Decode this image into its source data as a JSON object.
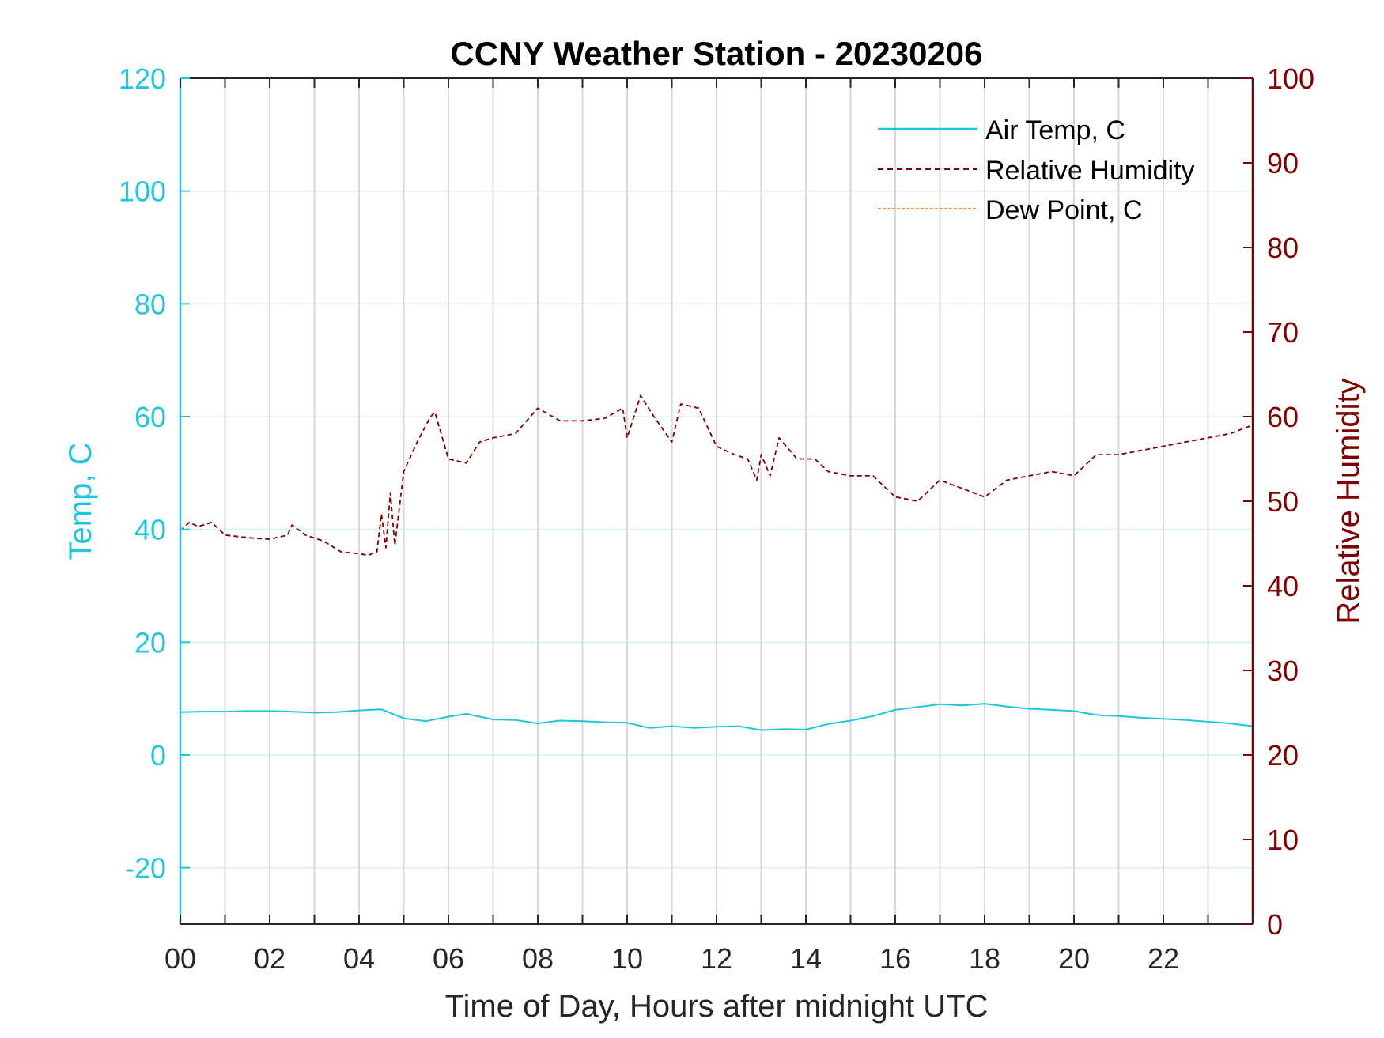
{
  "chart_data": {
    "type": "line",
    "title": "CCNY Weather Station - 20230206",
    "xlabel": "Time of Day, Hours after midnight UTC",
    "ylabel_left": "Temp, C",
    "ylabel_right": "Relative Humidity",
    "xlim": [
      0,
      24
    ],
    "ylim_left": [
      -30,
      120
    ],
    "ylim_right": [
      0,
      100
    ],
    "x_ticks": [
      "00",
      "02",
      "04",
      "06",
      "08",
      "10",
      "12",
      "14",
      "16",
      "18",
      "20",
      "22"
    ],
    "y_ticks_left": [
      "-20",
      "0",
      "20",
      "40",
      "60",
      "80",
      "100",
      "120"
    ],
    "y_ticks_right": [
      "0",
      "10",
      "20",
      "30",
      "40",
      "50",
      "60",
      "70",
      "80",
      "90",
      "100"
    ],
    "grid": true,
    "legend_position": "top-right",
    "colors": {
      "temp": "#1fc6dc",
      "rh": "#800000",
      "dew": "#e8721c",
      "grid_vertical": "#d8d8d8",
      "grid_horizontal": "#cdeff5"
    },
    "series": [
      {
        "name": "Air Temp, C",
        "axis": "left",
        "style": "solid",
        "x": [
          0,
          0.5,
          1,
          1.5,
          2,
          2.5,
          3,
          3.5,
          4,
          4.5,
          5,
          5.5,
          6,
          6.4,
          7,
          7.5,
          8,
          8.5,
          9,
          9.5,
          10,
          10.5,
          11,
          11.5,
          12,
          12.5,
          13,
          13.5,
          14,
          14.5,
          15,
          15.5,
          16,
          16.5,
          17,
          17.5,
          18,
          18.5,
          19,
          19.5,
          20,
          20.5,
          21,
          21.5,
          22,
          22.5,
          23,
          23.5,
          24
        ],
        "values": [
          7.6,
          7.7,
          7.7,
          7.8,
          7.8,
          7.7,
          7.5,
          7.6,
          7.9,
          8.1,
          6.5,
          6.0,
          6.8,
          7.3,
          6.3,
          6.2,
          5.6,
          6.1,
          6.0,
          5.8,
          5.7,
          4.8,
          5.1,
          4.8,
          5.0,
          5.1,
          4.4,
          4.6,
          4.5,
          5.5,
          6.1,
          6.9,
          8.0,
          8.5,
          9.0,
          8.8,
          9.1,
          8.6,
          8.2,
          8.0,
          7.8,
          7.1,
          6.9,
          6.6,
          6.4,
          6.2,
          5.9,
          5.6,
          5.1
        ]
      },
      {
        "name": "Relative Humidity",
        "axis": "right",
        "style": "dashed",
        "x": [
          0,
          0.2,
          0.4,
          0.7,
          1,
          1.5,
          2,
          2.4,
          2.5,
          2.8,
          3.2,
          3.6,
          4,
          4.2,
          4.4,
          4.5,
          4.6,
          4.7,
          4.8,
          5,
          5.3,
          5.6,
          5.7,
          6,
          6.4,
          6.7,
          7,
          7.5,
          8,
          8.5,
          9,
          9.5,
          9.9,
          10,
          10.3,
          10.6,
          11,
          11.2,
          11.6,
          12,
          12.4,
          12.7,
          12.9,
          13,
          13.2,
          13.4,
          13.8,
          14.2,
          14.5,
          15,
          15.5,
          16,
          16.5,
          17,
          17.5,
          18,
          18.5,
          19,
          19.5,
          20,
          20.5,
          21,
          21.5,
          22,
          22.5,
          23,
          23.5,
          24
        ],
        "values": [
          46.5,
          47.5,
          47.0,
          47.5,
          46.0,
          45.7,
          45.5,
          46.0,
          47.2,
          46.0,
          45.3,
          44.0,
          43.8,
          43.6,
          44.0,
          48.5,
          44.5,
          51.0,
          44.8,
          53.5,
          57.0,
          60.0,
          60.5,
          55.0,
          54.5,
          57.0,
          57.5,
          58.0,
          61.0,
          59.5,
          59.5,
          59.8,
          61.0,
          57.5,
          62.5,
          60.0,
          57.0,
          61.5,
          61.0,
          56.5,
          55.5,
          55.0,
          52.5,
          55.5,
          53.0,
          57.5,
          55.0,
          55.0,
          53.5,
          53.0,
          53.0,
          50.5,
          50.0,
          52.5,
          51.5,
          50.5,
          52.5,
          53.0,
          53.5,
          53.0,
          55.5,
          55.5,
          56.0,
          56.5,
          57.0,
          57.5,
          58.0,
          59.0
        ]
      },
      {
        "name": "Dew Point, C",
        "axis": "left",
        "style": "dashdot",
        "x": [],
        "values": []
      }
    ]
  }
}
